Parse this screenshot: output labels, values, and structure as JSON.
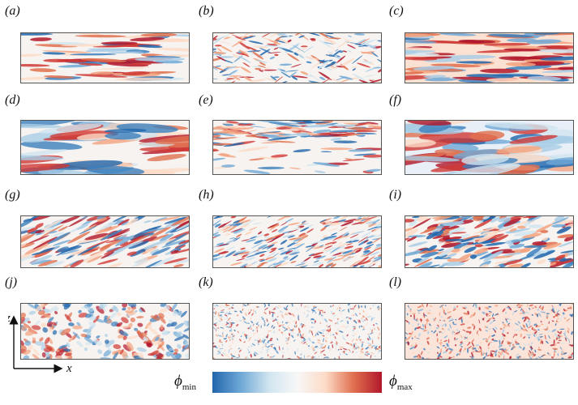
{
  "panels": [
    {
      "label": "(a)",
      "style": "streaky",
      "seed": 1
    },
    {
      "label": "(b)",
      "style": "mixed",
      "seed": 2
    },
    {
      "label": "(c)",
      "style": "streaky-red",
      "seed": 3
    },
    {
      "label": "(d)",
      "style": "wide",
      "seed": 4
    },
    {
      "label": "(e)",
      "style": "banded",
      "seed": 5
    },
    {
      "label": "(f)",
      "style": "wide-blue",
      "seed": 6
    },
    {
      "label": "(g)",
      "style": "diagonal",
      "seed": 7
    },
    {
      "label": "(h)",
      "style": "fine-diagonal",
      "seed": 8
    },
    {
      "label": "(i)",
      "style": "diagonal-strong",
      "seed": 9
    },
    {
      "label": "(j)",
      "style": "blotchy",
      "seed": 10
    },
    {
      "label": "(k)",
      "style": "noise",
      "seed": 11
    },
    {
      "label": "(l)",
      "style": "noise-red",
      "seed": 12
    }
  ],
  "axes": {
    "x_label": "x",
    "z_label": "z"
  },
  "colorbar": {
    "min_label": "ϕ",
    "min_sub": "min",
    "max_label": "ϕ",
    "max_sub": "max",
    "colors": [
      "#2166ac",
      "#6fa8d6",
      "#d1e5f0",
      "#f7f7f7",
      "#fddbc7",
      "#e0704f",
      "#b2182b"
    ]
  }
}
